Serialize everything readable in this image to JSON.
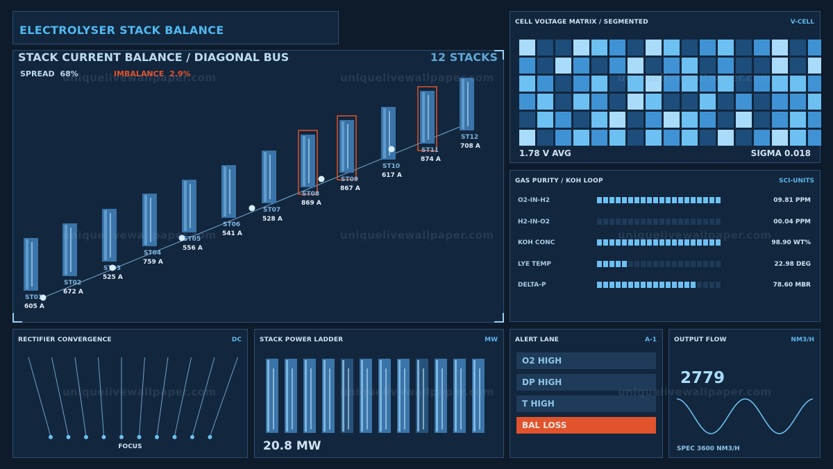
{
  "header": {
    "title": "ELECTROLYSER STACK BALANCE"
  },
  "main": {
    "title": "STACK CURRENT BALANCE / DIAGONAL BUS",
    "count": "12 STACKS",
    "spread_label": "SPREAD",
    "spread_value": "68%",
    "imbalance_label": "IMBALANCE",
    "imbalance_value": "2.9%",
    "stacks": [
      {
        "id": "ST01",
        "amps": "605 A",
        "flag": false
      },
      {
        "id": "ST02",
        "amps": "672 A",
        "flag": false
      },
      {
        "id": "ST03",
        "amps": "525 A",
        "flag": false
      },
      {
        "id": "ST04",
        "amps": "759 A",
        "flag": false
      },
      {
        "id": "ST05",
        "amps": "556 A",
        "flag": false
      },
      {
        "id": "ST06",
        "amps": "541 A",
        "flag": false
      },
      {
        "id": "ST07",
        "amps": "528 A",
        "flag": false
      },
      {
        "id": "ST08",
        "amps": "869 A",
        "flag": true
      },
      {
        "id": "ST09",
        "amps": "867 A",
        "flag": true
      },
      {
        "id": "ST10",
        "amps": "617 A",
        "flag": false
      },
      {
        "id": "ST11",
        "amps": "874 A",
        "flag": true
      },
      {
        "id": "ST12",
        "amps": "708 A",
        "flag": false
      }
    ]
  },
  "voltage": {
    "title": "CELL VOLTAGE MATRIX / SEGMENTED",
    "tag": "V-CELL",
    "avg": "1.78 V AVG",
    "sigma": "SIGMA 0.018",
    "levels": [
      [
        4,
        1,
        1,
        4,
        3,
        2,
        1,
        4,
        3,
        1,
        2,
        3,
        1,
        2,
        4,
        1,
        2
      ],
      [
        2,
        1,
        4,
        2,
        1,
        2,
        4,
        1,
        2,
        3,
        1,
        2,
        1,
        1,
        4,
        1,
        4
      ],
      [
        3,
        2,
        1,
        2,
        3,
        1,
        3,
        4,
        2,
        3,
        2,
        3,
        1,
        2,
        3,
        3,
        2
      ],
      [
        2,
        3,
        1,
        3,
        2,
        1,
        4,
        3,
        1,
        1,
        3,
        1,
        2,
        1,
        2,
        2,
        3
      ],
      [
        1,
        3,
        2,
        1,
        3,
        4,
        1,
        2,
        4,
        3,
        2,
        1,
        4,
        1,
        2,
        3,
        2
      ],
      [
        4,
        1,
        2,
        3,
        2,
        3,
        1,
        3,
        2,
        3,
        1,
        4,
        1,
        2,
        4,
        3,
        2
      ]
    ],
    "palette": [
      "#17324e",
      "#1d4d7a",
      "#3f93d4",
      "#6cc1f2",
      "#a9dcfa"
    ]
  },
  "gas": {
    "title": "GAS PURITY / KOH LOOP",
    "tag": "SCI-UNITS",
    "rows": [
      {
        "label": "O2-IN-H2",
        "value": "09.81 PPM",
        "fill": 0.98
      },
      {
        "label": "H2-IN-O2",
        "value": "00.04 PPM",
        "fill": 0.0
      },
      {
        "label": "KOH CONC",
        "value": "98.90 WT%",
        "fill": 0.98
      },
      {
        "label": "LYE TEMP",
        "value": "22.98 DEG",
        "fill": 0.23
      },
      {
        "label": "DELTA-P",
        "value": "78.60 MBR",
        "fill": 0.79
      }
    ]
  },
  "rectifier": {
    "title": "RECTIFIER CONVERGENCE",
    "tag": "DC",
    "focus": "FOCUS"
  },
  "power": {
    "title": "STACK POWER LADDER",
    "tag": "MW",
    "total": "20.8 MW"
  },
  "alert": {
    "title": "ALERT LANE",
    "tag": "A-1",
    "items": [
      {
        "label": "O2 HIGH",
        "crit": false
      },
      {
        "label": "DP HIGH",
        "crit": false
      },
      {
        "label": "T HIGH",
        "crit": false
      },
      {
        "label": "BAL LOSS",
        "crit": true
      }
    ]
  },
  "flow": {
    "title": "OUTPUT FLOW",
    "tag": "NM3/H",
    "value": "2779",
    "spec": "SPEC 3600 NM3/H"
  },
  "watermark": "uniquelivewallpaper.com",
  "colors": {
    "accent": "#4fb8ef",
    "alert": "#e0532c",
    "bus": "#7fb8de"
  }
}
